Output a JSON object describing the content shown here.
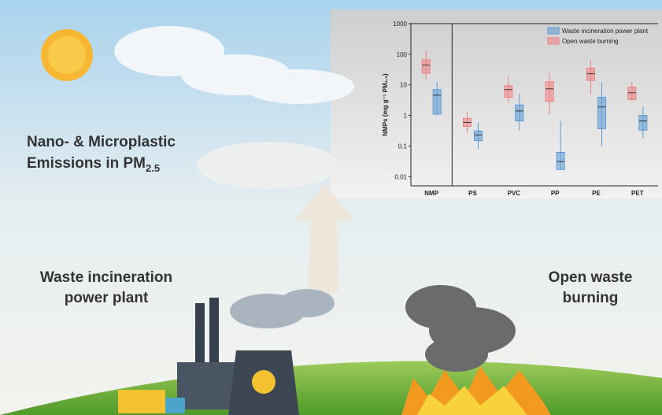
{
  "illustration": {
    "labels": {
      "nano": "Nano- & Microplastic",
      "emissions": "Emissions in PM",
      "emissions_sub": "2.5",
      "incineration_1": "Waste incineration",
      "incineration_2": "power plant",
      "open_1": "Open waste",
      "open_2": "burning"
    }
  },
  "chart_data": {
    "type": "box",
    "ylabel": "NMPs (mg g⁻¹ PM₂.₅)",
    "log": true,
    "ylim": [
      0.005,
      1000
    ],
    "yticks": [
      0.01,
      0.1,
      1,
      10,
      100,
      1000
    ],
    "categories": [
      "NMP",
      "PS",
      "PVC",
      "PP",
      "PE",
      "PET"
    ],
    "legend": "top-right",
    "series": [
      {
        "name": "Waste incineration power plant",
        "color": "#5b9bd5",
        "min": [
          1,
          0.08,
          0.33,
          0.017,
          0.1,
          0.18
        ],
        "q1": [
          1.1,
          0.15,
          0.66,
          0.017,
          0.37,
          0.33
        ],
        "median": [
          4.6,
          0.23,
          1.4,
          0.031,
          1.9,
          0.66
        ],
        "q3": [
          7,
          0.31,
          2.2,
          0.062,
          3.9,
          1
        ],
        "max": [
          12.6,
          0.6,
          5.2,
          0.66,
          12,
          1.9
        ]
      },
      {
        "name": "Open waste burning",
        "color": "#f08080",
        "min": [
          15,
          0.27,
          2.6,
          1.1,
          4.9,
          2.9
        ],
        "q1": [
          24,
          0.44,
          3.9,
          2.9,
          14,
          3.3
        ],
        "median": [
          44,
          0.59,
          7,
          7.4,
          23,
          5.5
        ],
        "q3": [
          66,
          0.8,
          9.4,
          12.6,
          35,
          8.4
        ],
        "max": [
          134,
          1.3,
          19,
          24,
          62,
          12.6
        ]
      }
    ]
  }
}
